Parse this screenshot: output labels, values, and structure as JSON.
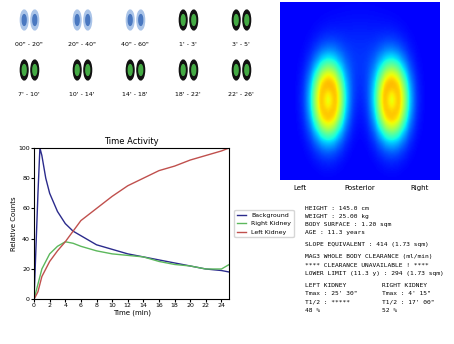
{
  "chart_data": {
    "type": "line",
    "title": "Time Activity",
    "x_label": "Time (min)",
    "y_label": "Relative Counts",
    "x": [
      0,
      0.5,
      0.75,
      1,
      1.5,
      2,
      3,
      4,
      5,
      6,
      8,
      10,
      12,
      14,
      16,
      18,
      20,
      22,
      24,
      25
    ],
    "series": [
      {
        "name": "Background",
        "color": "#2b2b8c",
        "line_style": "solid",
        "values": [
          0,
          70,
          100,
          95,
          80,
          70,
          58,
          50,
          45,
          42,
          36,
          33,
          30,
          28,
          26,
          24,
          22,
          20,
          19,
          18
        ]
      },
      {
        "name": "Right Kidney",
        "color": "#5cb85c",
        "line_style": "solid",
        "values": [
          0,
          10,
          15,
          20,
          25,
          30,
          35,
          38,
          37,
          35,
          32,
          30,
          29,
          28,
          25,
          23,
          22,
          20,
          20,
          23
        ]
      },
      {
        "name": "Left Kidney",
        "color": "#c0504d",
        "line_style": "solid",
        "values": [
          0,
          5,
          10,
          15,
          20,
          25,
          32,
          38,
          45,
          52,
          60,
          68,
          75,
          80,
          85,
          88,
          92,
          95,
          98,
          100
        ]
      }
    ],
    "xlim": [
      0,
      25
    ],
    "xticks": [
      0,
      2,
      4,
      6,
      8,
      10,
      12,
      14,
      16,
      18,
      20,
      22,
      24
    ],
    "ylim": [
      0,
      100
    ],
    "yticks": [
      0,
      20,
      40,
      60,
      80,
      100
    ],
    "grid": false,
    "legend": "center left"
  },
  "frames": {
    "labels": [
      "00\" - 20\"",
      "20\" - 40\"",
      "40\" - 60\"",
      "1' - 3'",
      "3' - 5'",
      "7' - 10'",
      "10' - 14'",
      "14' - 18'",
      "18' - 22'",
      "22' - 26'"
    ]
  },
  "image": {
    "labels": [
      "Left",
      "Posterior",
      "Right"
    ]
  },
  "panel": {
    "patient": [
      "HEIGHT : 145.0 cm",
      "WEIGHT : 25.00 kg",
      "BODY SURFACE : 1.20 sqm",
      "AGE : 11.3 years"
    ],
    "slope": [
      "SLOPE EQUIVALENT : 414 (1.73 sqm)"
    ],
    "clearance": [
      "MAG3 WHOLE BODY CLEARANCE (ml/min)",
      "**** CLEARANCE UNAVAILABLE ! ****",
      "LOWER LIMIT (11.3 y) : 294 (1.73 sqm)"
    ],
    "left_kidney": [
      "LEFT KIDNEY",
      "Tmax : 25' 30\"",
      "T1/2 : *****",
      "48 %"
    ],
    "right_kidney": [
      "RIGHT KIDNEY",
      "Tmax : 4' 15\"",
      "T1/2 : 17' 00\"",
      "52 %"
    ]
  }
}
